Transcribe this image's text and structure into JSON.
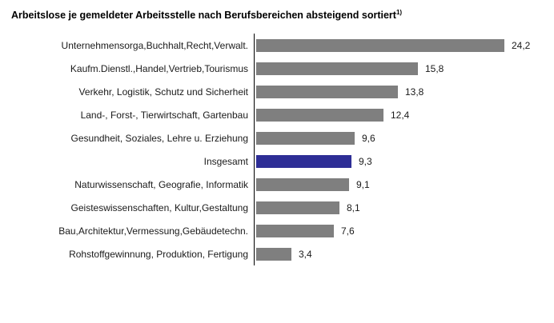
{
  "title": {
    "text": "Arbeitslose je gemeldeter Arbeitsstelle nach Berufsbereichen absteigend sortiert",
    "footnote_marker": "1)"
  },
  "colors": {
    "bar_default": "#7f7f7f",
    "bar_highlight": "#2e2e96",
    "axis_line": "#000000"
  },
  "chart_data": {
    "type": "bar",
    "orientation": "horizontal",
    "title": "Arbeitslose je gemeldeter Arbeitsstelle nach Berufsbereichen absteigend sortiert1)",
    "categories": [
      "Unternehmensorga,Buchhalt,Recht,Verwalt.",
      "Kaufm.Dienstl.,Handel,Vertrieb,Tourismus",
      "Verkehr, Logistik, Schutz und Sicherheit",
      "Land-, Forst-, Tierwirtschaft, Gartenbau",
      "Gesundheit, Soziales, Lehre u. Erziehung",
      "Insgesamt",
      "Naturwissenschaft, Geografie, Informatik",
      "Geisteswissenschaften, Kultur,Gestaltung",
      "Bau,Architektur,Vermessung,Gebäudetechn.",
      "Rohstoffgewinnung, Produktion, Fertigung"
    ],
    "values": [
      24.2,
      15.8,
      13.8,
      12.4,
      9.6,
      9.3,
      9.1,
      8.1,
      7.6,
      3.4
    ],
    "value_labels": [
      "24,2",
      "15,8",
      "13,8",
      "12,4",
      "9,6",
      "9,3",
      "9,1",
      "8,1",
      "7,6",
      "3,4"
    ],
    "highlight_index": 5,
    "xlabel": "",
    "ylabel": "",
    "xlim": [
      0,
      27
    ],
    "grid": false,
    "legend": false,
    "data_labels": true
  }
}
